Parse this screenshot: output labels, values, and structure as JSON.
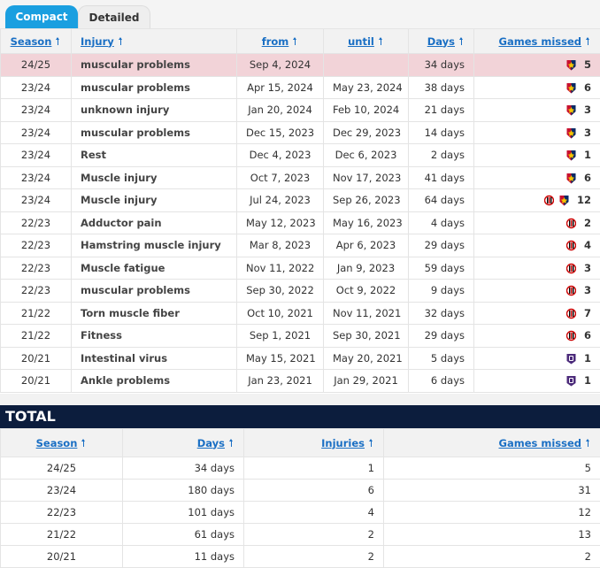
{
  "tabs": [
    "Compact",
    "Detailed"
  ],
  "injuries": {
    "columns": [
      "Season",
      "Injury",
      "from",
      "until",
      "Days",
      "Games missed"
    ],
    "rows": [
      [
        "24/25",
        "muscular problems",
        "Sep 4, 2024",
        null,
        "34 days",
        5
      ],
      [
        "23/24",
        "muscular problems",
        "Apr 15, 2024",
        "May 23, 2024",
        "38 days",
        6
      ],
      [
        "23/24",
        "unknown injury",
        "Jan 20, 2024",
        "Feb 10, 2024",
        "21 days",
        3
      ],
      [
        "23/24",
        "muscular problems",
        "Dec 15, 2023",
        "Dec 29, 2023",
        "14 days",
        3
      ],
      [
        "23/24",
        "Rest",
        "Dec 4, 2023",
        "Dec 6, 2023",
        "2 days",
        1
      ],
      [
        "23/24",
        "Muscle injury",
        "Oct 7, 2023",
        "Nov 17, 2023",
        "41 days",
        6
      ],
      [
        "23/24",
        "Muscle injury",
        "Jul 24, 2023",
        "Sep 26, 2023",
        "64 days",
        12
      ],
      [
        "22/23",
        "Adductor pain",
        "May 12, 2023",
        "May 16, 2023",
        "4 days",
        2
      ],
      [
        "22/23",
        "Hamstring muscle injury",
        "Mar 8, 2023",
        "Apr 6, 2023",
        "29 days",
        4
      ],
      [
        "22/23",
        "Muscle fatigue",
        "Nov 11, 2022",
        "Jan 9, 2023",
        "59 days",
        3
      ],
      [
        "22/23",
        "muscular problems",
        "Sep 30, 2022",
        "Oct 9, 2022",
        "9 days",
        3
      ],
      [
        "21/22",
        "Torn muscle fiber",
        "Oct 10, 2021",
        "Nov 11, 2021",
        "32 days",
        7
      ],
      [
        "21/22",
        "Fitness",
        "Sep 1, 2021",
        "Sep 30, 2021",
        "29 days",
        6
      ],
      [
        "20/21",
        "Intestinal virus",
        "May 15, 2021",
        "May 20, 2021",
        "5 days",
        1
      ],
      [
        "20/21",
        "Ankle problems",
        "Jan 23, 2021",
        "Jan 29, 2021",
        "6 days",
        1
      ]
    ]
  },
  "total": {
    "title": "TOTAL",
    "columns": [
      "Season",
      "Days",
      "Injuries",
      "Games missed"
    ],
    "rows": [
      [
        "24/25",
        "34 days",
        1,
        5
      ],
      [
        "23/24",
        "180 days",
        6,
        31
      ],
      [
        "22/23",
        "101 days",
        4,
        12
      ],
      [
        "21/22",
        "61 days",
        2,
        13
      ],
      [
        "20/21",
        "11 days",
        2,
        2
      ]
    ]
  }
}
